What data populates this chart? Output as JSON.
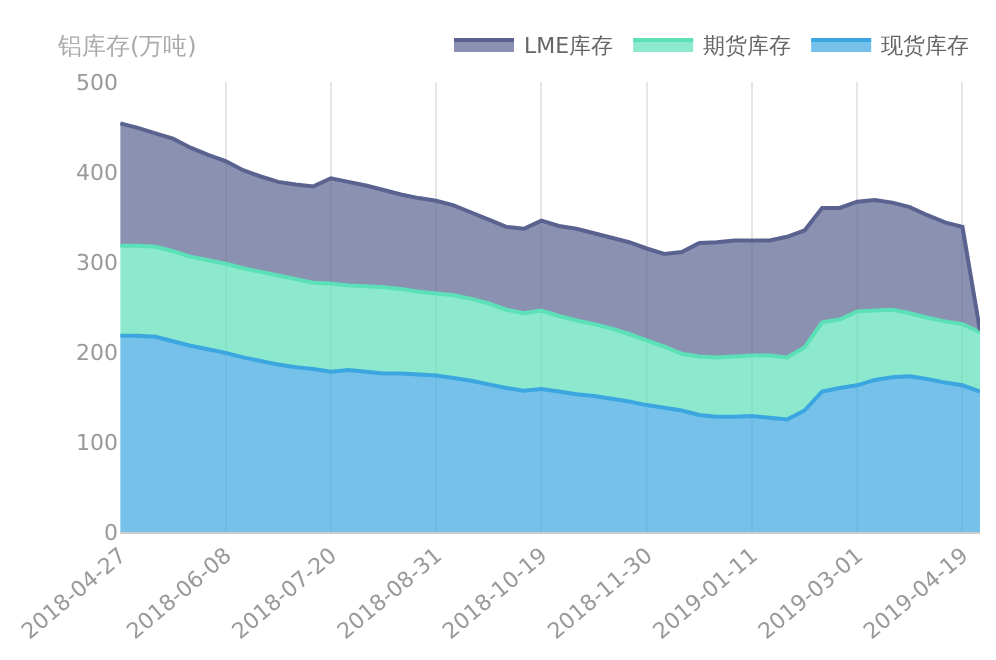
{
  "chart_data": {
    "type": "area",
    "stacked": true,
    "ylabel": "铝库存(万吨)",
    "ylim": [
      0,
      500
    ],
    "yticks": [
      0,
      100,
      200,
      300,
      400,
      500
    ],
    "grid": "x",
    "legend": "top right",
    "line_style": "solid",
    "categories": [
      "2018-04-27",
      null,
      null,
      null,
      null,
      null,
      "2018-06-08",
      null,
      null,
      null,
      null,
      null,
      "2018-07-20",
      null,
      null,
      null,
      null,
      null,
      "2018-08-31",
      null,
      null,
      null,
      null,
      null,
      "2018-10-19",
      null,
      null,
      null,
      null,
      null,
      "2018-11-30",
      null,
      null,
      null,
      null,
      null,
      "2019-01-11",
      null,
      null,
      null,
      null,
      null,
      "2019-03-01",
      null,
      null,
      null,
      null,
      null,
      "2019-04-19",
      null
    ],
    "series": [
      {
        "name": "现货库存",
        "color": "#3ba6e0",
        "values": [
          218,
          218,
          217,
          212,
          207,
          203,
          199,
          194,
          190,
          186,
          183,
          181,
          178,
          180,
          178,
          176,
          176,
          175,
          174,
          171,
          168,
          164,
          160,
          157,
          159,
          156,
          153,
          151,
          148,
          145,
          141,
          138,
          135,
          130,
          128,
          128,
          129,
          127,
          125,
          135,
          156,
          160,
          163,
          169,
          172,
          173,
          170,
          166,
          163,
          156
        ]
      },
      {
        "name": "期货库存",
        "color": "#5ce0b8",
        "values": [
          100,
          100,
          100,
          100,
          99,
          99,
          99,
          99,
          99,
          99,
          98,
          96,
          98,
          94,
          95,
          96,
          94,
          92,
          91,
          92,
          91,
          90,
          87,
          86,
          87,
          84,
          82,
          80,
          78,
          75,
          72,
          68,
          63,
          65,
          66,
          67,
          67,
          69,
          69,
          70,
          77,
          76,
          82,
          77,
          75,
          70,
          68,
          68,
          68,
          66
        ]
      },
      {
        "name": "LME库存",
        "color": "#5a6390",
        "values": [
          136,
          131,
          126,
          125,
          121,
          117,
          114,
          109,
          106,
          104,
          105,
          107,
          117,
          115,
          112,
          108,
          105,
          104,
          103,
          100,
          96,
          93,
          92,
          94,
          100,
          100,
          102,
          101,
          101,
          102,
          102,
          103,
          113,
          126,
          128,
          129,
          128,
          128,
          134,
          130,
          127,
          124,
          122,
          123,
          119,
          118,
          114,
          110,
          108,
          2
        ]
      }
    ]
  }
}
